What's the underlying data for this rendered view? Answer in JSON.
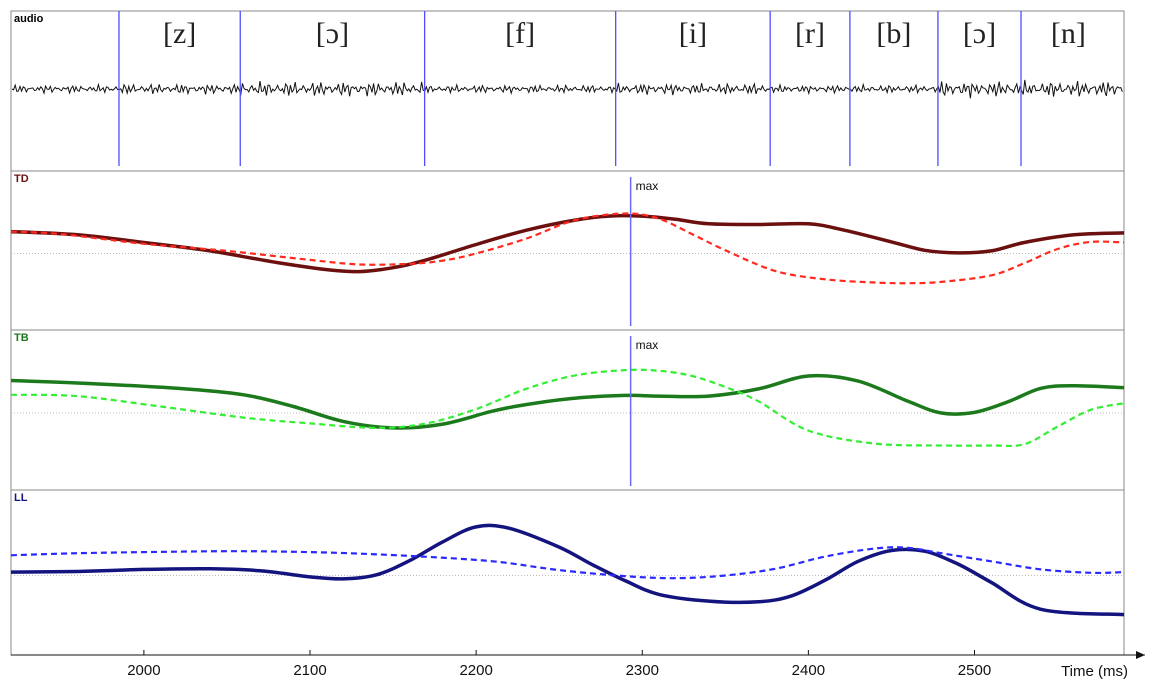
{
  "chart_data": {
    "type": "line",
    "xlabel": "Time (ms)",
    "xlim": [
      1920,
      2590
    ],
    "xticks": [
      2000,
      2100,
      2200,
      2300,
      2400,
      2500
    ],
    "xtick_labels": [
      "2000",
      "2100",
      "2200",
      "2300",
      "2400",
      "2500"
    ],
    "grid": false,
    "segments": {
      "boundaries": [
        1985,
        2058,
        2169,
        2284,
        2377,
        2425,
        2478,
        2528
      ],
      "labels": [
        "[z]",
        "[ɔ]",
        "[f]",
        "[i]",
        "[r]",
        "[b]",
        "[ɔ]",
        "[n]"
      ]
    },
    "panels": [
      {
        "label": "audio",
        "type": "waveform",
        "color": "#000000"
      },
      {
        "label": "TD",
        "ylim": [
          -1,
          1
        ],
        "baseline": 0,
        "max_marker": {
          "x": 2293,
          "label": "max"
        },
        "series": [
          {
            "style": "solid",
            "color": "#6b0f0f",
            "x": [
              1920,
              1960,
              2000,
              2040,
              2080,
              2110,
              2130,
              2150,
              2170,
              2200,
              2230,
              2260,
              2280,
              2300,
              2320,
              2340,
              2370,
              2400,
              2420,
              2450,
              2470,
              2490,
              2510,
              2530,
              2560,
              2590
            ],
            "y": [
              0.34,
              0.29,
              0.17,
              0.04,
              -0.14,
              -0.25,
              -0.28,
              -0.22,
              -0.1,
              0.14,
              0.36,
              0.52,
              0.58,
              0.58,
              0.53,
              0.46,
              0.45,
              0.46,
              0.37,
              0.18,
              0.05,
              0.01,
              0.04,
              0.17,
              0.29,
              0.32
            ]
          },
          {
            "style": "dashed",
            "color": "#ff2a1e",
            "x": [
              1920,
              1950,
              2000,
              2050,
              2100,
              2130,
              2160,
              2180,
              2200,
              2230,
              2260,
              2290,
              2310,
              2330,
              2350,
              2380,
              2410,
              2440,
              2460,
              2480,
              2510,
              2530,
              2550,
              2570,
              2590
            ],
            "y": [
              0.34,
              0.3,
              0.15,
              0.04,
              -0.1,
              -0.17,
              -0.16,
              -0.11,
              0.0,
              0.23,
              0.52,
              0.62,
              0.54,
              0.3,
              0.05,
              -0.27,
              -0.4,
              -0.45,
              -0.46,
              -0.44,
              -0.34,
              -0.15,
              0.07,
              0.18,
              0.17
            ]
          }
        ]
      },
      {
        "label": "TB",
        "ylim": [
          -1,
          1
        ],
        "baseline": 0,
        "max_marker": {
          "x": 2293,
          "label": "max"
        },
        "series": [
          {
            "style": "solid",
            "color": "#1c7a1c",
            "x": [
              1920,
              1970,
              2020,
              2060,
              2090,
              2120,
              2150,
              2180,
              2210,
              2230,
              2260,
              2290,
              2310,
              2340,
              2370,
              2400,
              2430,
              2460,
              2480,
              2500,
              2520,
              2540,
              2560,
              2590
            ],
            "y": [
              0.5,
              0.45,
              0.38,
              0.28,
              0.1,
              -0.13,
              -0.23,
              -0.17,
              0.03,
              0.13,
              0.23,
              0.27,
              0.26,
              0.26,
              0.37,
              0.57,
              0.49,
              0.18,
              0.0,
              0.01,
              0.17,
              0.38,
              0.42,
              0.39
            ]
          },
          {
            "style": "dashed",
            "color": "#33ee33",
            "x": [
              1920,
              1960,
              2010,
              2060,
              2100,
              2140,
              2170,
              2200,
              2230,
              2260,
              2290,
              2310,
              2330,
              2350,
              2370,
              2400,
              2440,
              2480,
              2510,
              2530,
              2550,
              2570,
              2590
            ],
            "y": [
              0.28,
              0.26,
              0.1,
              -0.07,
              -0.16,
              -0.23,
              -0.16,
              0.06,
              0.37,
              0.58,
              0.66,
              0.65,
              0.57,
              0.4,
              0.18,
              -0.27,
              -0.47,
              -0.5,
              -0.5,
              -0.48,
              -0.21,
              0.05,
              0.15
            ]
          }
        ]
      },
      {
        "label": "LL",
        "ylim": [
          -1,
          1
        ],
        "baseline": 0,
        "series": [
          {
            "style": "solid",
            "color": "#14147f",
            "x": [
              1920,
              1960,
              2000,
              2040,
              2070,
              2100,
              2120,
              2140,
              2160,
              2180,
              2200,
              2220,
              2250,
              2270,
              2290,
              2310,
              2340,
              2370,
              2390,
              2410,
              2430,
              2450,
              2470,
              2490,
              2510,
              2540,
              2590
            ],
            "y": [
              0.05,
              0.06,
              0.09,
              0.1,
              0.07,
              -0.02,
              -0.05,
              0.01,
              0.22,
              0.5,
              0.72,
              0.7,
              0.42,
              0.16,
              -0.08,
              -0.28,
              -0.38,
              -0.39,
              -0.3,
              -0.07,
              0.21,
              0.37,
              0.36,
              0.17,
              -0.1,
              -0.5,
              -0.58
            ]
          },
          {
            "style": "dashed",
            "color": "#2a2aff",
            "x": [
              1920,
              1960,
              2010,
              2060,
              2110,
              2160,
              2210,
              2250,
              2290,
              2320,
              2350,
              2380,
              2410,
              2440,
              2460,
              2480,
              2510,
              2540,
              2570,
              2590
            ],
            "y": [
              0.3,
              0.33,
              0.35,
              0.36,
              0.34,
              0.29,
              0.21,
              0.08,
              -0.01,
              -0.04,
              0.0,
              0.1,
              0.28,
              0.4,
              0.41,
              0.33,
              0.21,
              0.09,
              0.04,
              0.05
            ]
          }
        ]
      }
    ]
  }
}
